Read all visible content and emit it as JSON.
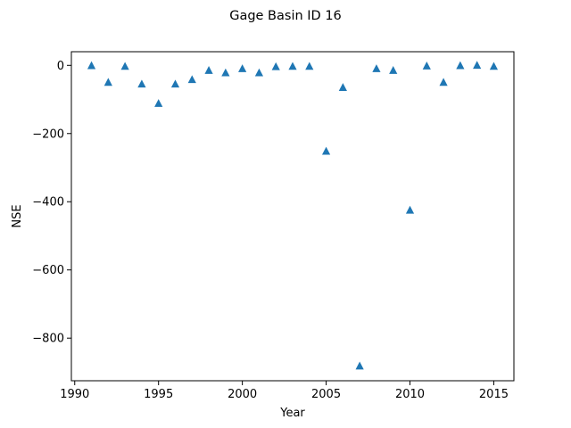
{
  "chart_data": {
    "type": "scatter",
    "title": "Gage Basin ID 16",
    "xlabel": "Year",
    "ylabel": "NSE",
    "xlim": [
      1989.8,
      2016.2
    ],
    "ylim": [
      -925,
      40
    ],
    "xticks": [
      1990,
      1995,
      2000,
      2005,
      2010,
      2015
    ],
    "yticks": [
      0,
      -200,
      -400,
      -600,
      -800
    ],
    "grid": false,
    "marker": "triangle-up",
    "color": "#1f77b4",
    "series": [
      {
        "x": [
          1991,
          1992,
          1993,
          1994,
          1995,
          1996,
          1997,
          1998,
          1999,
          2000,
          2001,
          2002,
          2003,
          2004,
          2005,
          2006,
          2007,
          2008,
          2009,
          2010,
          2011,
          2012,
          2013,
          2014,
          2015
        ],
        "y": [
          -1,
          -50,
          -3,
          -55,
          -112,
          -55,
          -42,
          -15,
          -22,
          -10,
          -22,
          -4,
          -3,
          -3,
          -252,
          -65,
          -882,
          -10,
          -15,
          -425,
          -2,
          -50,
          -1,
          0,
          -3
        ]
      }
    ]
  }
}
